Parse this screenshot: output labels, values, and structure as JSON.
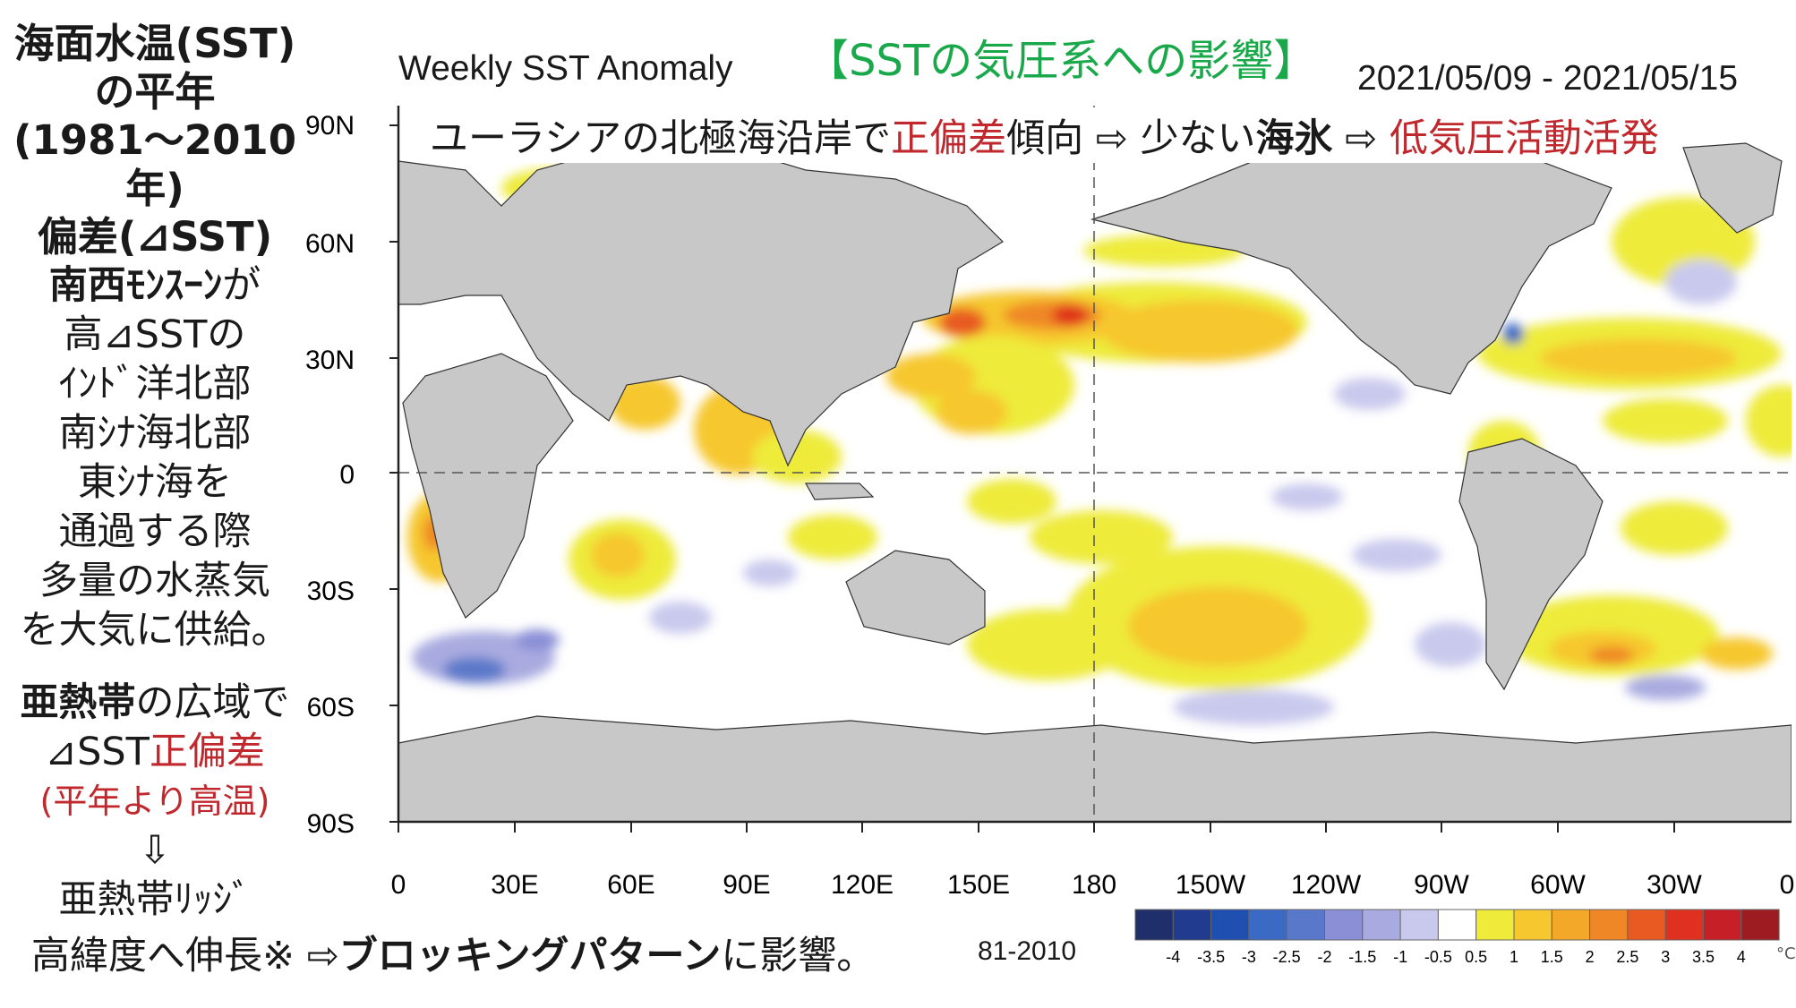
{
  "left_panel": {
    "title_lines": [
      "海面水温(SST)",
      "の平年",
      "(1981～2010年)",
      "偏差(⊿SST)"
    ],
    "monsoon_bold": "南西ﾓﾝｽｰﾝ",
    "monsoon_rest": "が",
    "body_lines": [
      "高⊿SSTの",
      "ｲﾝﾄﾞ洋北部",
      "南ｼﾅ海北部",
      "東ｼﾅ海を",
      "通過する際",
      "多量の水蒸気",
      "を大気に供給。"
    ],
    "subtropic_bold": "亜熱帯",
    "subtropic_rest": "の広域で",
    "anomaly_prefix": "⊿SST",
    "anomaly_red": "正偏差",
    "warm_note": "(平年より高温)",
    "arrow": "⇩",
    "ridge": "亜熱帯ﾘｯｼﾞ"
  },
  "header": {
    "map_title": "Weekly SST Anomaly",
    "jp_title": "【SSTの気圧系への影響】",
    "date_range": "2021/05/09 - 2021/05/15"
  },
  "annotation": {
    "part1": "ユーラシアの北極海沿岸で",
    "part2_red": "正偏差",
    "part3": "傾向 ⇨ 少ない",
    "part4_bold": "海氷",
    "part5": " ⇨ ",
    "part6_red": "低気圧活動活発"
  },
  "bottom": {
    "part1": "高緯度へ伸長※ ⇨",
    "part2_bold": "ブロッキングパターン",
    "part3": "に影響。",
    "base_period": "81-2010"
  },
  "map": {
    "lat_labels": [
      "90N",
      "60N",
      "30N",
      "0",
      "30S",
      "60S",
      "90S"
    ],
    "lon_labels": [
      "0",
      "30E",
      "60E",
      "90E",
      "120E",
      "150E",
      "180",
      "150W",
      "120W",
      "90W",
      "60W",
      "30W",
      "0"
    ],
    "land_color": "#c8c8c8",
    "grid_color": "#555555"
  },
  "colorbar": {
    "labels": [
      "-4",
      "-3.5",
      "-3",
      "-2.5",
      "-2",
      "-1.5",
      "-1",
      "-0.5",
      "0.5",
      "1",
      "1.5",
      "2",
      "2.5",
      "3",
      "3.5",
      "4"
    ],
    "colors": [
      "#1f2f6b",
      "#213b8f",
      "#1f4fb0",
      "#3a6ac4",
      "#5a78c9",
      "#8a8fd6",
      "#a9abe0",
      "#c9c9ee",
      "#ffffff",
      "#eeeb3a",
      "#f6c72f",
      "#f4a82a",
      "#ef8726",
      "#e85a22",
      "#e0301f",
      "#c61f28",
      "#9c1c22"
    ],
    "unit": "°C"
  }
}
